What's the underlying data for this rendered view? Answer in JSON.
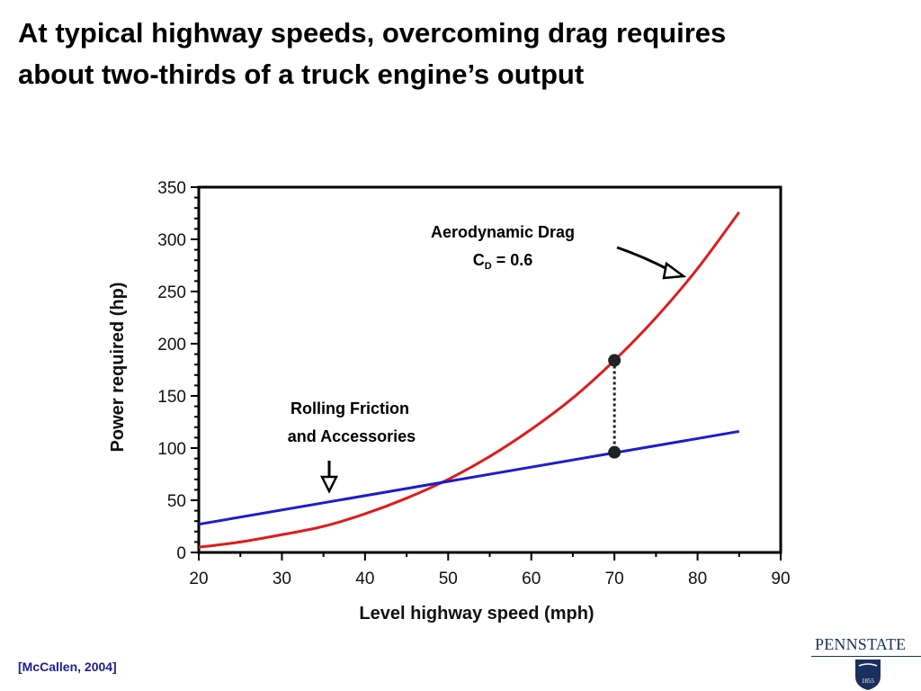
{
  "slide": {
    "title_line1": "At typical highway speeds, overcoming drag requires",
    "title_line2": "about two-thirds of a truck engine’s output",
    "citation": "[McCallen, 2004]",
    "logo_text": "PENNSTATE",
    "logo_year": "1855"
  },
  "colors": {
    "drag": "#e01b1b",
    "rolling": "#1c1ccc",
    "marker": "#222222"
  },
  "chart_data": {
    "type": "line",
    "title": "",
    "xlabel": "Level highway speed (mph)",
    "ylabel": "Power required (hp)",
    "xlim": [
      20,
      90
    ],
    "ylim": [
      0,
      350
    ],
    "xticks": [
      20,
      30,
      40,
      50,
      60,
      70,
      80,
      90
    ],
    "yticks": [
      0,
      50,
      100,
      150,
      200,
      250,
      300,
      350
    ],
    "grid": false,
    "series": [
      {
        "name": "Aerodynamic Drag C_D = 0.6",
        "color": "#e01b1b",
        "x": [
          20,
          25,
          30,
          35,
          40,
          45,
          50,
          55,
          60,
          65,
          70,
          75,
          80,
          85
        ],
        "y": [
          5,
          10,
          17,
          25,
          37,
          52,
          70,
          92,
          118,
          148,
          184,
          225,
          272,
          326
        ]
      },
      {
        "name": "Rolling Friction and Accessories",
        "color": "#1c1ccc",
        "x": [
          20,
          85
        ],
        "y": [
          27,
          116
        ]
      }
    ],
    "annotations": {
      "drag_label_line1": "Aerodynamic Drag",
      "drag_label_c": "C",
      "drag_label_sub": "D",
      "drag_label_value": " = 0.6",
      "rolling_label_line1": "Rolling Friction",
      "rolling_label_line2": "and Accessories",
      "markers": [
        {
          "x": 70,
          "y": 184
        },
        {
          "x": 70,
          "y": 96
        }
      ]
    }
  }
}
